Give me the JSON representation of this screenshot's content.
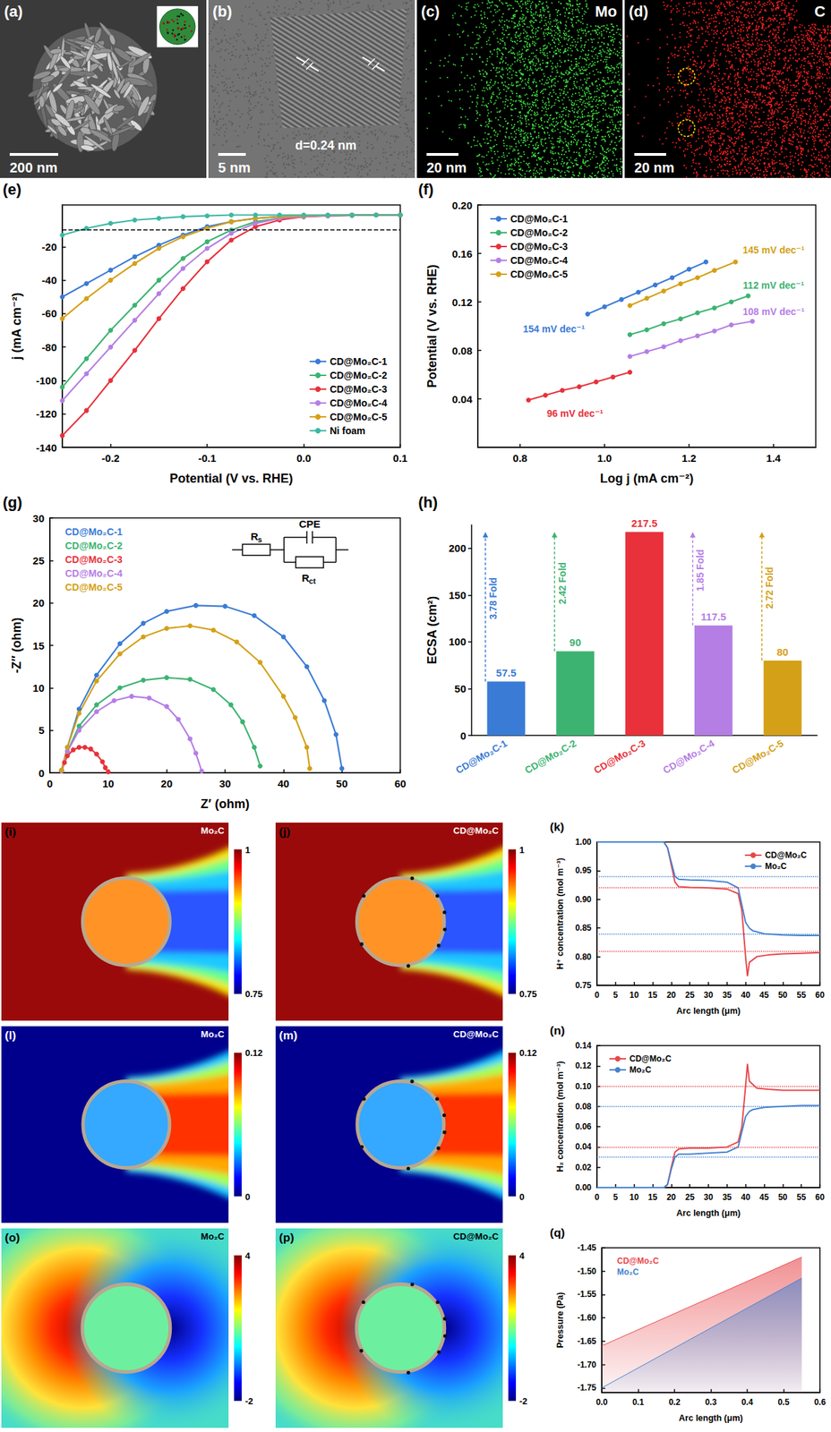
{
  "panels": {
    "a": {
      "panel_label": "(a)",
      "scale_bar": "200 nm"
    },
    "b": {
      "panel_label": "(b)",
      "scale_bar": "5 nm",
      "annotation": "d=0.24 nm"
    },
    "c": {
      "panel_label": "(c)",
      "scale_bar": "20 nm",
      "element": "Mo"
    },
    "d": {
      "panel_label": "(d)",
      "scale_bar": "20 nm",
      "element": "C"
    },
    "i": {
      "panel_label": "(i)",
      "title": "Mo₂C",
      "colorbar": {
        "range": [
          0.75,
          1
        ],
        "ticks": [
          0.75,
          1
        ]
      }
    },
    "j": {
      "panel_label": "(j)",
      "title": "CD@Mo₂C",
      "colorbar": {
        "range": [
          0.75,
          1
        ],
        "ticks": [
          0.75,
          1
        ]
      }
    },
    "l": {
      "panel_label": "(l)",
      "title": "Mo₂C",
      "colorbar": {
        "range": [
          0,
          0.12
        ],
        "ticks": [
          0,
          0.12
        ]
      }
    },
    "m": {
      "panel_label": "(m)",
      "title": "CD@Mo₂C",
      "colorbar": {
        "range": [
          0,
          0.12
        ],
        "ticks": [
          0,
          0.12
        ]
      }
    },
    "o": {
      "panel_label": "(o)",
      "title": "Mo₂C",
      "colorbar": {
        "range": [
          -2,
          4
        ],
        "ticks": [
          -2,
          4
        ]
      }
    },
    "p": {
      "panel_label": "(p)",
      "title": "CD@Mo₂C",
      "colorbar": {
        "range": [
          -2,
          4
        ],
        "ticks": [
          -2,
          4
        ]
      }
    }
  },
  "chart_data": [
    {
      "type": "line",
      "panel_label": "(e)",
      "x_label": "Potential (V vs. RHE)",
      "y_label": "j (mA cm⁻²)",
      "x": [
        -0.25,
        -0.225,
        -0.2,
        -0.175,
        -0.15,
        -0.125,
        -0.1,
        -0.075,
        -0.05,
        -0.025,
        0,
        0.025,
        0.05,
        0.075,
        0.1
      ],
      "series": [
        {
          "name": "CD@Mo₂C-1",
          "color": "#3a7bd5",
          "values": [
            -50,
            -42,
            -34,
            -26,
            -19,
            -13,
            -8,
            -5,
            -3,
            -2,
            -1.5,
            -1.2,
            -1,
            -1,
            -1
          ]
        },
        {
          "name": "CD@Mo₂C-2",
          "color": "#3cb371",
          "values": [
            -104,
            -87,
            -70,
            -55,
            -40,
            -27,
            -17,
            -10,
            -5,
            -3,
            -2,
            -1.5,
            -1.2,
            -1,
            -1
          ]
        },
        {
          "name": "CD@Mo₂C-3",
          "color": "#e8313a",
          "values": [
            -133,
            -118,
            -100,
            -82,
            -63,
            -45,
            -29,
            -16,
            -8,
            -4,
            -2,
            -1.5,
            -1.2,
            -1,
            -1
          ]
        },
        {
          "name": "CD@Mo₂C-4",
          "color": "#b57ee5",
          "values": [
            -112,
            -96,
            -80,
            -64,
            -48,
            -33,
            -21,
            -12,
            -6,
            -3,
            -2,
            -1.5,
            -1.2,
            -1,
            -1
          ]
        },
        {
          "name": "CD@Mo₂C-5",
          "color": "#d4a017",
          "values": [
            -63,
            -51,
            -40,
            -30,
            -21,
            -14,
            -9,
            -5,
            -3,
            -2,
            -1.5,
            -1.2,
            -1,
            -1,
            -1
          ]
        },
        {
          "name": "Ni foam",
          "color": "#3cb8a5",
          "values": [
            -13,
            -9,
            -6,
            -4,
            -3,
            -2,
            -1.5,
            -1,
            -1,
            -1,
            -1,
            -1,
            -1,
            -1,
            -1
          ]
        }
      ],
      "xlim": [
        -0.25,
        0.1
      ],
      "xticks": [
        -0.2,
        -0.1,
        {
          "value": 0,
          "label": "0.0"
        },
        0.1
      ],
      "ylim": [
        -140,
        5
      ],
      "yticks": [
        -140,
        -120,
        -100,
        -80,
        -60,
        -40,
        -20
      ],
      "reference_line": -10,
      "marker": "circle",
      "legend": "lower right",
      "grid": false
    },
    {
      "type": "line",
      "panel_label": "(f)",
      "x_label": "Log j (mA cm⁻²)",
      "y_label": "Potential (V vs. RHE)",
      "series": [
        {
          "name": "CD@Mo₂C-1",
          "color": "#3a7bd5",
          "x": [
            0.96,
            1.0,
            1.04,
            1.08,
            1.12,
            1.16,
            1.2,
            1.24
          ],
          "values": [
            0.11,
            0.116,
            0.122,
            0.128,
            0.134,
            0.14,
            0.147,
            0.153
          ]
        },
        {
          "name": "CD@Mo₂C-2",
          "color": "#3cb371",
          "x": [
            1.06,
            1.1,
            1.14,
            1.18,
            1.22,
            1.26,
            1.3,
            1.34
          ],
          "values": [
            0.093,
            0.097,
            0.102,
            0.106,
            0.111,
            0.115,
            0.12,
            0.125
          ]
        },
        {
          "name": "CD@Mo₂C-3",
          "color": "#e8313a",
          "x": [
            0.82,
            0.86,
            0.9,
            0.94,
            0.98,
            1.02,
            1.06
          ],
          "values": [
            0.039,
            0.043,
            0.047,
            0.05,
            0.054,
            0.058,
            0.062
          ]
        },
        {
          "name": "CD@Mo₂C-4",
          "color": "#b57ee5",
          "x": [
            1.06,
            1.1,
            1.14,
            1.18,
            1.22,
            1.26,
            1.3,
            1.35
          ],
          "values": [
            0.075,
            0.079,
            0.083,
            0.088,
            0.092,
            0.096,
            0.101,
            0.104
          ]
        },
        {
          "name": "CD@Mo₂C-5",
          "color": "#d4a017",
          "x": [
            1.06,
            1.1,
            1.14,
            1.18,
            1.22,
            1.26,
            1.31
          ],
          "values": [
            0.117,
            0.123,
            0.129,
            0.135,
            0.14,
            0.146,
            0.153
          ]
        }
      ],
      "annotations": [
        {
          "text": "154 mV dec⁻¹",
          "series": "CD@Mo₂C-1",
          "x": 0.88,
          "y": 0.098
        },
        {
          "text": "112 mV dec⁻¹",
          "series": "CD@Mo₂C-2",
          "x": 1.4,
          "y": 0.134
        },
        {
          "text": "96 mV dec⁻¹",
          "series": "CD@Mo₂C-3",
          "x": 0.93,
          "y": 0.028
        },
        {
          "text": "108 mV dec⁻¹",
          "series": "CD@Mo₂C-4",
          "x": 1.4,
          "y": 0.112
        },
        {
          "text": "145 mV dec⁻¹",
          "series": "CD@Mo₂C-5",
          "x": 1.4,
          "y": 0.163
        }
      ],
      "xlim": [
        0.7,
        1.5
      ],
      "xticks": [
        0.8,
        {
          "value": 1,
          "label": "1.0"
        },
        1.2,
        1.4
      ],
      "ylim": [
        0,
        0.2
      ],
      "yticks": [
        0.04,
        0.08,
        0.12,
        0.16,
        {
          "value": 0.2,
          "label": "0.20"
        }
      ],
      "marker": "circle",
      "legend": "upper left",
      "grid": false
    },
    {
      "type": "line",
      "panel_label": "(g)",
      "x_label": "Z′ (ohm)",
      "y_label": "-Z″ (ohm)",
      "series": [
        {
          "name": "CD@Mo₂C-1",
          "color": "#3a7bd5",
          "x": [
            2,
            3,
            5,
            8,
            12,
            16,
            20,
            25,
            30,
            35,
            40,
            44,
            47,
            49,
            50
          ],
          "values": [
            0.3,
            3,
            7.5,
            11.5,
            15.2,
            17.6,
            19,
            19.7,
            19.6,
            18.5,
            16,
            12.5,
            8.5,
            4.5,
            0.5
          ]
        },
        {
          "name": "CD@Mo₂C-2",
          "color": "#3cb371",
          "x": [
            2,
            3,
            5,
            8,
            12,
            16,
            20,
            24,
            28,
            31,
            33,
            35,
            36
          ],
          "values": [
            0.2,
            2.5,
            5.5,
            8,
            10,
            10.9,
            11.2,
            11,
            9.8,
            8,
            6,
            3,
            0.8
          ]
        },
        {
          "name": "CD@Mo₂C-3",
          "color": "#e8313a",
          "x": [
            2,
            2.5,
            3,
            4,
            5,
            6,
            7,
            8,
            9,
            9.5,
            10
          ],
          "values": [
            0.2,
            1.2,
            2,
            2.7,
            3,
            3,
            2.8,
            2.2,
            1.3,
            0.6,
            0.1
          ]
        },
        {
          "name": "CD@Mo₂C-4",
          "color": "#b57ee5",
          "x": [
            2,
            3,
            5,
            8,
            11,
            14,
            17,
            20,
            22,
            24,
            25,
            26
          ],
          "values": [
            0.2,
            2.5,
            5,
            7.2,
            8.5,
            9,
            8.8,
            7.8,
            6.3,
            4,
            2.3,
            0.2
          ]
        },
        {
          "name": "CD@Mo₂C-5",
          "color": "#d4a017",
          "x": [
            2,
            3,
            5,
            8,
            12,
            16,
            20,
            24,
            28,
            32,
            36,
            40,
            42,
            44,
            44.5
          ],
          "values": [
            0.3,
            3,
            7,
            10.8,
            14,
            16,
            17,
            17.3,
            16.8,
            15.4,
            13,
            9,
            6.5,
            3,
            0.5
          ]
        }
      ],
      "circuit": [
        "Rs",
        "CPE",
        "Rct"
      ],
      "xlim": [
        0,
        60
      ],
      "xticks": [
        0,
        10,
        20,
        30,
        40,
        50,
        60
      ],
      "ylim": [
        0,
        30
      ],
      "yticks": [
        0,
        5,
        10,
        15,
        20,
        25,
        30
      ],
      "marker": "circle",
      "legend": "upper left",
      "grid": false
    },
    {
      "type": "bar",
      "panel_label": "(h)",
      "y_label": "ECSA (cm²)",
      "categories": [
        "CD@Mo₂C-1",
        "CD@Mo₂C-2",
        "CD@Mo₂C-3",
        "CD@Mo₂C-4",
        "CD@Mo₂C-5"
      ],
      "values": [
        57.5,
        90,
        217.5,
        117.5,
        80
      ],
      "colors": [
        "#3a7bd5",
        "#3cb371",
        "#e8313a",
        "#b57ee5",
        "#d4a017"
      ],
      "fold_labels": [
        "3.78 Fold",
        "2.42 Fold",
        null,
        "1.85 Fold",
        "2.72 Fold"
      ],
      "ylim": [
        0,
        225
      ],
      "yticks": [
        0,
        50,
        100,
        150,
        200
      ],
      "data_labels": true,
      "grid": false
    },
    {
      "type": "line",
      "panel_label": "(k)",
      "x_label": "Arc length (μm)",
      "y_label": "H⁺ concentration (mol m⁻³)",
      "series": [
        {
          "name": "CD@Mo₂C",
          "color": "#e8474b",
          "x": [
            0,
            18,
            19,
            20,
            21,
            22,
            25,
            30,
            35,
            38,
            39,
            40,
            40.5,
            41,
            43,
            46,
            50,
            55,
            60
          ],
          "values": [
            1,
            1,
            0.99,
            0.96,
            0.93,
            0.922,
            0.921,
            0.92,
            0.918,
            0.91,
            0.88,
            0.8,
            0.766,
            0.79,
            0.8,
            0.803,
            0.805,
            0.806,
            0.807
          ],
          "levels": [
            0.922,
            0.805
          ]
        },
        {
          "name": "Mo₂C",
          "color": "#4682d0",
          "x": [
            0,
            18,
            19,
            20,
            21,
            22,
            25,
            30,
            35,
            38,
            39,
            40,
            41,
            42,
            45,
            50,
            55,
            60
          ],
          "values": [
            1,
            1,
            0.99,
            0.965,
            0.94,
            0.935,
            0.934,
            0.933,
            0.93,
            0.92,
            0.89,
            0.86,
            0.85,
            0.845,
            0.84,
            0.838,
            0.837,
            0.837
          ],
          "levels": [
            0.935,
            0.837
          ]
        }
      ],
      "xlim": [
        0,
        60
      ],
      "xticks": [
        0,
        5,
        10,
        15,
        20,
        25,
        30,
        35,
        40,
        45,
        50,
        55,
        60
      ],
      "ylim": [
        0.75,
        1
      ],
      "yticks": [
        0.75,
        {
          "value": 0.8,
          "label": "0.80"
        },
        0.85,
        {
          "value": 0.9,
          "label": "0.90"
        },
        0.95,
        {
          "value": 1,
          "label": "1.00"
        }
      ],
      "legend": "upper right",
      "grid": false
    },
    {
      "type": "line",
      "panel_label": "(n)",
      "x_label": "Arc length (μm)",
      "y_label": "H₂ concentration (mol m⁻³)",
      "series": [
        {
          "name": "CD@Mo₂C",
          "color": "#e8474b",
          "x": [
            0,
            18,
            19,
            20,
            21,
            22,
            25,
            30,
            35,
            38,
            39,
            40,
            40.5,
            41,
            43,
            46,
            50,
            55,
            60
          ],
          "values": [
            0,
            0,
            0.003,
            0.02,
            0.035,
            0.038,
            0.039,
            0.039,
            0.04,
            0.045,
            0.06,
            0.1,
            0.122,
            0.105,
            0.098,
            0.097,
            0.096,
            0.096,
            0.096
          ],
          "levels": [
            0.096,
            0.039
          ]
        },
        {
          "name": "Mo₂C",
          "color": "#4682d0",
          "x": [
            0,
            18,
            19,
            20,
            21,
            22,
            25,
            30,
            35,
            38,
            39,
            40,
            41,
            42,
            45,
            50,
            55,
            60
          ],
          "values": [
            0,
            0,
            0.003,
            0.018,
            0.03,
            0.033,
            0.033,
            0.034,
            0.035,
            0.04,
            0.055,
            0.07,
            0.075,
            0.077,
            0.079,
            0.08,
            0.081,
            0.081
          ],
          "levels": [
            0.081,
            0.033
          ]
        }
      ],
      "xlim": [
        0,
        60
      ],
      "xticks": [
        0,
        5,
        10,
        15,
        20,
        25,
        30,
        35,
        40,
        45,
        50,
        55,
        60
      ],
      "ylim": [
        0,
        0.14
      ],
      "yticks": [
        {
          "value": 0,
          "label": "0.00"
        },
        0.02,
        0.04,
        0.06,
        0.08,
        {
          "value": 0.1,
          "label": "0.10"
        },
        0.12,
        0.14
      ],
      "legend": "upper left",
      "grid": false
    },
    {
      "type": "area",
      "panel_label": "(q)",
      "x_label": "Arc length (μm)",
      "y_label": "Pressure (Pa)",
      "series": [
        {
          "name": "CD@Mo₂C",
          "color": "#e8474b",
          "x": [
            0,
            0.55
          ],
          "values": [
            -1.66,
            -1.47
          ]
        },
        {
          "name": "Mo₂C",
          "color": "#4682d0",
          "x": [
            0,
            0.55
          ],
          "values": [
            -1.75,
            -1.515
          ]
        }
      ],
      "xlim": [
        0,
        0.6
      ],
      "xticks": [
        {
          "value": 0,
          "label": "0.0"
        },
        0.1,
        0.2,
        0.3,
        0.4,
        0.5,
        0.6
      ],
      "ylim": [
        -1.76,
        -1.45
      ],
      "yticks": [
        -1.75,
        {
          "value": -1.7,
          "label": "-1.70"
        },
        -1.65,
        {
          "value": -1.6,
          "label": "-1.60"
        },
        -1.55,
        {
          "value": -1.5,
          "label": "-1.50"
        },
        -1.45
      ],
      "legend": "upper left",
      "grid": false
    }
  ]
}
